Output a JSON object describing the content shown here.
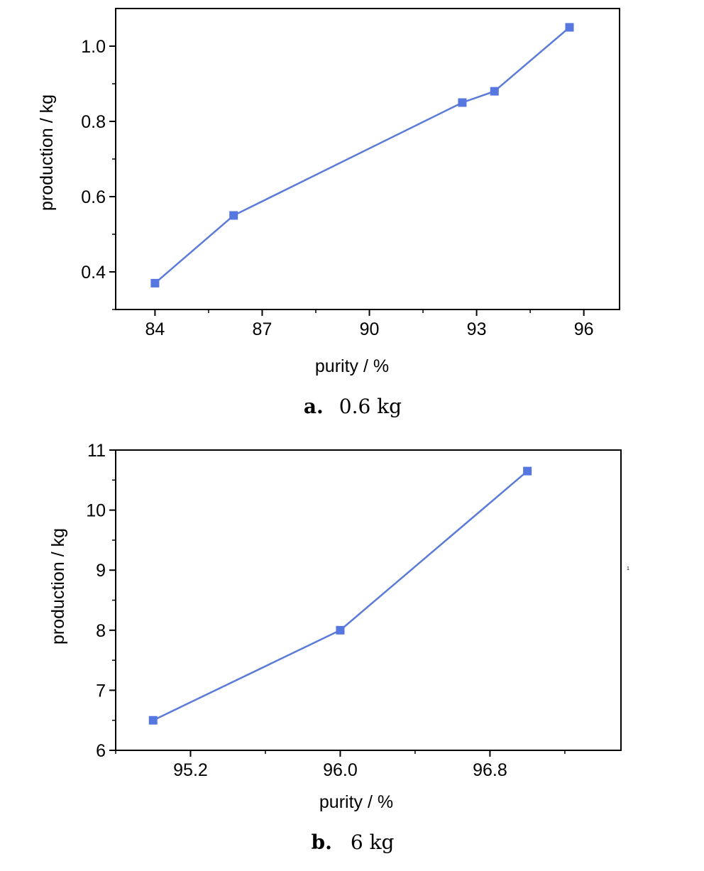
{
  "chart_data": [
    {
      "type": "line",
      "xlabel": "purity / %",
      "ylabel": "production / kg",
      "xlim": [
        82.9,
        97
      ],
      "ylim": [
        0.3,
        1.1
      ],
      "x_ticks": [
        84,
        87,
        90,
        93,
        96
      ],
      "x_tick_labels": [
        "84",
        "87",
        "90",
        "93",
        "96"
      ],
      "y_ticks": [
        0.4,
        0.6,
        0.8,
        1.0
      ],
      "y_tick_labels": [
        "0.4",
        "0.6",
        "0.8",
        "1.0"
      ],
      "series": [
        {
          "x": [
            84.0,
            86.2,
            92.6,
            93.5,
            95.6
          ],
          "y": [
            0.37,
            0.55,
            0.85,
            0.88,
            1.05
          ]
        }
      ],
      "caption_letter": "a.",
      "caption_text": "0.6 kg",
      "colors": {
        "line": "#5b7bd8",
        "marker": "#5676e0"
      }
    },
    {
      "type": "line",
      "xlabel": "purity / %",
      "ylabel": "production / kg",
      "xlim": [
        94.8,
        97.5
      ],
      "ylim": [
        6,
        11
      ],
      "x_ticks": [
        95.2,
        96.0,
        96.8
      ],
      "x_tick_labels": [
        "95.2",
        "96.0",
        "96.8"
      ],
      "y_ticks": [
        6,
        7,
        8,
        9,
        10,
        11
      ],
      "y_tick_labels": [
        "6",
        "7",
        "8",
        "9",
        "10",
        "11"
      ],
      "series": [
        {
          "x": [
            95.0,
            96.0,
            97.0
          ],
          "y": [
            6.5,
            8.0,
            10.65
          ]
        }
      ],
      "caption_letter": "b.",
      "caption_text": "6 kg",
      "colors": {
        "line": "#5b7bd8",
        "marker": "#5676e0"
      }
    }
  ],
  "stray_mark": "1"
}
